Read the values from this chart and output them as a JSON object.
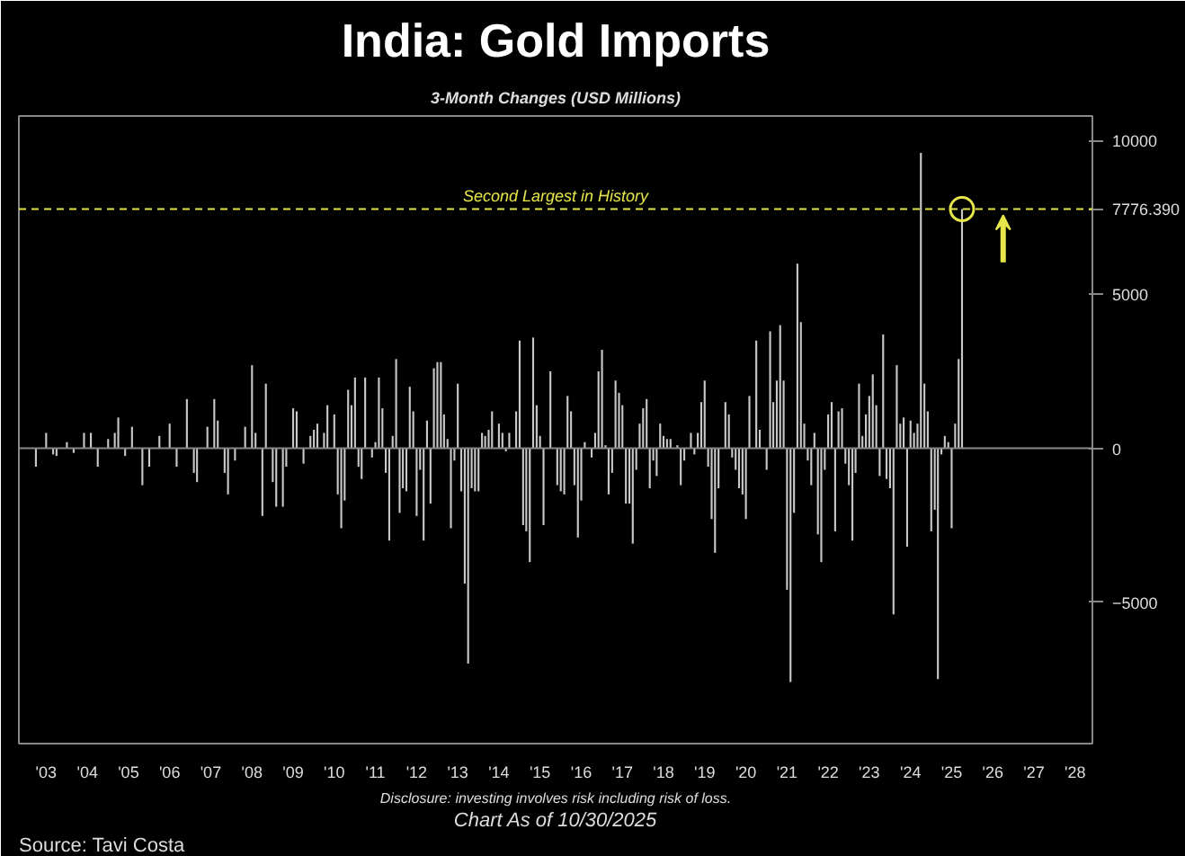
{
  "chart_data": {
    "type": "bar",
    "title": "India: Gold Imports",
    "subtitle": "3-Month Changes (USD Millions)",
    "annotations": [
      "Disclosure: investing involves risk including risk of loss.",
      "Chart As of 10/30/2025",
      "Source: Tavi Costa"
    ],
    "x": [
      "2003-04",
      "2003-07",
      "2003-09",
      "2003-10",
      "2004-01",
      "2004-03",
      "2004-06",
      "2004-08",
      "2004-10",
      "2005-01",
      "2005-03",
      "2005-04",
      "2005-06",
      "2005-08",
      "2005-11",
      "2006-01",
      "2006-04",
      "2006-07",
      "2006-09",
      "2006-12",
      "2007-02",
      "2007-03",
      "2007-06",
      "2007-08",
      "2007-09",
      "2007-11",
      "2007-12",
      "2008-02",
      "2008-05",
      "2008-07",
      "2008-08",
      "2008-10",
      "2008-11",
      "2009-01",
      "2009-02",
      "2009-04",
      "2009-05",
      "2009-07",
      "2009-08",
      "2009-10",
      "2009-12",
      "2010-01",
      "2010-02",
      "2010-04",
      "2010-05",
      "2010-07",
      "2010-08",
      "2010-09",
      "2010-10",
      "2010-11",
      "2010-12",
      "2011-01",
      "2011-02",
      "2011-03",
      "2011-04",
      "2011-06",
      "2011-07",
      "2011-08",
      "2011-09",
      "2011-10",
      "2011-11",
      "2011-12",
      "2012-01",
      "2012-02",
      "2012-03",
      "2012-04",
      "2012-05",
      "2012-06",
      "2012-07",
      "2012-08",
      "2012-09",
      "2012-10",
      "2012-11",
      "2012-12",
      "2013-01",
      "2013-02",
      "2013-03",
      "2013-04",
      "2013-05",
      "2013-06",
      "2013-07",
      "2013-08",
      "2013-09",
      "2013-10",
      "2013-11",
      "2013-12",
      "2014-01",
      "2014-02",
      "2014-03",
      "2014-04",
      "2014-05",
      "2014-07",
      "2014-08",
      "2014-09",
      "2014-10",
      "2014-12",
      "2015-01",
      "2015-02",
      "2015-03",
      "2015-04",
      "2015-05",
      "2015-06",
      "2015-07",
      "2015-08",
      "2015-10",
      "2015-12",
      "2016-01",
      "2016-02",
      "2016-03",
      "2016-04",
      "2016-05",
      "2016-06",
      "2016-07",
      "2016-08",
      "2016-10",
      "2016-11",
      "2016-12",
      "2017-01",
      "2017-02",
      "2017-03",
      "2017-04",
      "2017-05",
      "2017-06",
      "2017-07",
      "2017-08",
      "2017-09",
      "2017-10",
      "2017-11",
      "2017-12",
      "2018-01",
      "2018-02",
      "2018-03",
      "2018-04",
      "2018-05",
      "2018-06",
      "2018-07",
      "2018-08",
      "2018-09",
      "2018-11",
      "2018-12",
      "2019-01",
      "2019-03",
      "2019-04",
      "2019-05",
      "2019-06",
      "2019-07",
      "2019-08",
      "2019-09",
      "2019-10",
      "2019-11",
      "2020-01",
      "2020-02",
      "2020-03",
      "2020-04",
      "2020-05",
      "2020-06",
      "2020-07",
      "2020-08",
      "2020-10",
      "2020-11",
      "2021-01",
      "2021-02",
      "2021-03",
      "2021-04",
      "2021-05",
      "2021-06",
      "2021-07",
      "2021-08",
      "2021-09",
      "2021-10",
      "2021-11",
      "2021-12",
      "2022-01",
      "2022-02",
      "2022-03",
      "2022-04",
      "2022-05",
      "2022-06",
      "2022-07",
      "2022-08",
      "2022-09",
      "2022-10",
      "2022-11",
      "2022-12",
      "2023-01",
      "2023-02",
      "2023-03",
      "2023-04",
      "2023-05",
      "2023-06",
      "2023-07",
      "2023-08",
      "2023-09",
      "2023-10",
      "2023-11",
      "2023-12",
      "2024-01",
      "2024-02",
      "2024-03",
      "2024-04",
      "2024-05",
      "2024-06",
      "2024-07",
      "2024-08",
      "2024-09",
      "2024-10",
      "2024-11",
      "2024-12",
      "2025-01",
      "2025-02",
      "2025-03",
      "2025-04",
      "2025-05",
      "2025-06",
      "2025-07",
      "2025-08",
      "2025-09",
      "2025-10"
    ],
    "series": [
      {
        "color": "#c8c8c8",
        "values": [
          -600,
          500,
          -200,
          -250,
          200,
          -150,
          500,
          500,
          -600,
          300,
          500,
          1000,
          -250,
          700,
          -1200,
          -600,
          400,
          800,
          -600,
          1600,
          -800,
          -1100,
          700,
          1600,
          900,
          -800,
          -1500,
          -400,
          700,
          2700,
          500,
          -2200,
          2100,
          -1100,
          -1900,
          -1900,
          -600,
          1300,
          1200,
          -500,
          400,
          600,
          800,
          500,
          1400,
          1100,
          -1500,
          -2600,
          -1700,
          1900,
          1400,
          2300,
          -600,
          -1000,
          2300,
          -300,
          200,
          2300,
          1300,
          -800,
          -3000,
          400,
          2900,
          -2100,
          -1300,
          -1400,
          2000,
          1200,
          -2200,
          -700,
          -3000,
          900,
          -1800,
          2600,
          2800,
          2800,
          1100,
          300,
          -2600,
          -400,
          2100,
          -1400,
          -4400,
          -7000,
          -1300,
          -1400,
          -1400,
          500,
          400,
          600,
          1200,
          800,
          500,
          -100,
          500,
          1200,
          3500,
          -2500,
          -2700,
          -3700,
          3600,
          1400,
          400,
          -2500,
          2500,
          -1200,
          -1400,
          -1500,
          1700,
          1200,
          -1200,
          -2900,
          -1700,
          200,
          -300,
          500,
          2500,
          3200,
          100,
          -1500,
          -800,
          2200,
          1800,
          1400,
          -1800,
          -1800,
          -3100,
          -700,
          800,
          1300,
          1600,
          -1300,
          -400,
          -900,
          800,
          400,
          300,
          300,
          100,
          -1200,
          -400,
          500,
          -200,
          500,
          1500,
          2200,
          -600,
          -2300,
          -3400,
          -1300,
          1500,
          1100,
          -300,
          -700,
          -1300,
          -1500,
          -2300,
          1700,
          3500,
          600,
          -700,
          3800,
          1500,
          2200,
          4000,
          2200,
          -4600,
          -7600,
          -2100,
          6000,
          4100,
          800,
          -400,
          -1200,
          500,
          -2800,
          -3700,
          -700,
          1100,
          1500,
          -2700,
          1200,
          1300,
          -500,
          -1200,
          -3000,
          -800,
          2100,
          400,
          1100,
          1700,
          2400,
          1400,
          -900,
          3700,
          -1000,
          -1300,
          -5400,
          2700,
          800,
          1000,
          -3200,
          900,
          500,
          800,
          9600,
          2100,
          1200,
          -2700,
          -2000,
          -7500,
          -200,
          400,
          200,
          -2600,
          800,
          2900,
          7776.39
        ]
      },
      {
        "type": "scatter",
        "x": [
          "2025-10"
        ],
        "values": [
          7776.39
        ],
        "color": "#e6e64a",
        "marker": "circle"
      }
    ],
    "xlim": [
      "2002-11",
      "2028-12"
    ],
    "xticks": [
      {
        "value": "2003-07",
        "label": "'03"
      },
      {
        "value": "2004-07",
        "label": "'04"
      },
      {
        "value": "2005-07",
        "label": "'05"
      },
      {
        "value": "2006-07",
        "label": "'06"
      },
      {
        "value": "2007-07",
        "label": "'07"
      },
      {
        "value": "2008-07",
        "label": "'08"
      },
      {
        "value": "2009-07",
        "label": "'09"
      },
      {
        "value": "2010-07",
        "label": "'10"
      },
      {
        "value": "2011-07",
        "label": "'11"
      },
      {
        "value": "2012-07",
        "label": "'12"
      },
      {
        "value": "2013-07",
        "label": "'13"
      },
      {
        "value": "2014-07",
        "label": "'14"
      },
      {
        "value": "2015-07",
        "label": "'15"
      },
      {
        "value": "2016-07",
        "label": "'16"
      },
      {
        "value": "2017-07",
        "label": "'17"
      },
      {
        "value": "2018-07",
        "label": "'18"
      },
      {
        "value": "2019-07",
        "label": "'19"
      },
      {
        "value": "2020-07",
        "label": "'20"
      },
      {
        "value": "2021-07",
        "label": "'21"
      },
      {
        "value": "2022-07",
        "label": "'22"
      },
      {
        "value": "2023-07",
        "label": "'23"
      },
      {
        "value": "2024-07",
        "label": "'24"
      },
      {
        "value": "2025-07",
        "label": "'25"
      },
      {
        "value": "2026-07",
        "label": "'26"
      },
      {
        "value": "2027-07",
        "label": "'27"
      },
      {
        "value": "2028-07",
        "label": "'28"
      }
    ],
    "ylim": [
      -9600,
      10800
    ],
    "yticks": [
      -5000,
      0,
      5000,
      {
        "value": 7776.39,
        "label": "7776.390"
      },
      10000
    ],
    "ref_lines": [
      {
        "axis": "y",
        "value": 7776.39,
        "label": "Second Largest in History",
        "color": "#e6e64a",
        "line_style": "dashed"
      }
    ],
    "grid": false
  }
}
